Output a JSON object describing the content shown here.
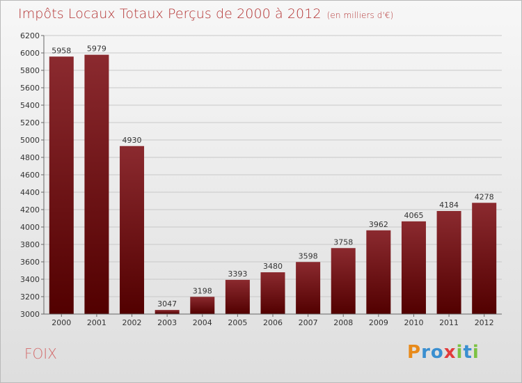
{
  "title": "Impôts Locaux Totaux Perçus de 2000 à 2012",
  "subtitle": "(en milliers d'€)",
  "location": "FOIX",
  "logo": {
    "letters": [
      "P",
      "r",
      "o",
      "x",
      "i",
      "t",
      "i"
    ],
    "colors": [
      "#e88a1a",
      "#3a8fd0",
      "#3a8fd0",
      "#e23b3b",
      "#7cc242",
      "#3a8fd0",
      "#7cc242"
    ]
  },
  "colors": {
    "bar_top": "#8b2a2f",
    "bar_bottom": "#520000",
    "title": "#b33333",
    "grid": "#c8c8c8"
  },
  "chart_data": {
    "type": "bar",
    "categories": [
      "2000",
      "2001",
      "2002",
      "2003",
      "2004",
      "2005",
      "2006",
      "2007",
      "2008",
      "2009",
      "2010",
      "2011",
      "2012"
    ],
    "values": [
      5958,
      5979,
      4930,
      3047,
      3198,
      3393,
      3480,
      3598,
      3758,
      3962,
      4065,
      4184,
      4278
    ],
    "ylim": [
      3000,
      6200
    ],
    "yticks": [
      3000,
      3200,
      3400,
      3600,
      3800,
      4000,
      4200,
      4400,
      4600,
      4800,
      5000,
      5200,
      5400,
      5600,
      5800,
      6000,
      6200
    ],
    "grid": true,
    "data_labels": true
  }
}
